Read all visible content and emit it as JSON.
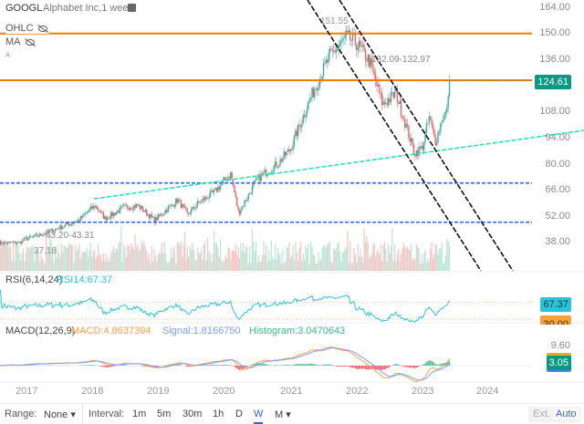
{
  "header": {
    "symbol": "GOOGL",
    "name": "Alphabet Inc,1 week",
    "ohlc_label": "OHLC",
    "ma_label": "MA",
    "collapse": "^"
  },
  "price_axis": [
    "164.00",
    "150.00",
    "136.00",
    "124.61",
    "108.00",
    "94.00",
    "80.00",
    "66.00",
    "52.00",
    "38.00"
  ],
  "annotations": {
    "high": "151.55",
    "range_hi": "132.09-132.97",
    "range_lo": "43.20-43.31",
    "low": "37.18"
  },
  "rsi": {
    "title": "RSI(6,14,24)",
    "value_label": "RSI14:67.37",
    "tag": "67.37",
    "level": "30.00"
  },
  "macd": {
    "title": "MACD(12,26,9)",
    "macd_label": "MACD:4.8637394",
    "signal_label": "Signal:1.8166750",
    "hist_label": "Histogram:3.0470643",
    "axis": "9.60",
    "tag": "3.05"
  },
  "x_axis": [
    "2017",
    "2018",
    "2019",
    "2020",
    "2021",
    "2022",
    "2023",
    "2024"
  ],
  "toolbar": {
    "range_label": "Range:",
    "range_value": "None ▾",
    "interval_label": "Interval:",
    "intervals": [
      "1m",
      "5m",
      "30m",
      "1h",
      "D",
      "W",
      "M ▾"
    ],
    "active": "W",
    "ext": "Ext.",
    "auto": "Auto"
  },
  "colors": {
    "up": "#26a69a",
    "down": "#ef5350",
    "accent": "#2962ff",
    "orange": "#f57c00",
    "rsi": "#26c6da",
    "trend": "#1de9b6",
    "macd": "#ffa040",
    "signal": "#7b9cff"
  },
  "chart_data": {
    "type": "candlestick",
    "price_anchors": [
      [
        2016.6,
        38
      ],
      [
        2016.9,
        38
      ],
      [
        2017.0,
        40
      ],
      [
        2017.2,
        42
      ],
      [
        2017.5,
        46
      ],
      [
        2017.8,
        50
      ],
      [
        2018.05,
        58
      ],
      [
        2018.2,
        51
      ],
      [
        2018.5,
        57
      ],
      [
        2018.7,
        58
      ],
      [
        2018.95,
        50
      ],
      [
        2019.3,
        61
      ],
      [
        2019.45,
        53
      ],
      [
        2019.6,
        59
      ],
      [
        2019.85,
        65
      ],
      [
        2020.1,
        75
      ],
      [
        2020.22,
        54
      ],
      [
        2020.5,
        72
      ],
      [
        2020.8,
        80
      ],
      [
        2021.0,
        88
      ],
      [
        2021.3,
        115
      ],
      [
        2021.6,
        138
      ],
      [
        2021.85,
        148
      ],
      [
        2022.0,
        145
      ],
      [
        2022.2,
        135
      ],
      [
        2022.4,
        112
      ],
      [
        2022.6,
        118
      ],
      [
        2022.8,
        95
      ],
      [
        2022.88,
        86
      ],
      [
        2023.0,
        89
      ],
      [
        2023.1,
        105
      ],
      [
        2023.2,
        92
      ],
      [
        2023.3,
        105
      ],
      [
        2023.37,
        108
      ],
      [
        2023.4,
        124.61
      ]
    ],
    "horizontal_levels": {
      "orange": [
        150,
        125
      ],
      "blue": [
        70,
        49
      ]
    },
    "ylim": [
      30,
      164
    ]
  }
}
